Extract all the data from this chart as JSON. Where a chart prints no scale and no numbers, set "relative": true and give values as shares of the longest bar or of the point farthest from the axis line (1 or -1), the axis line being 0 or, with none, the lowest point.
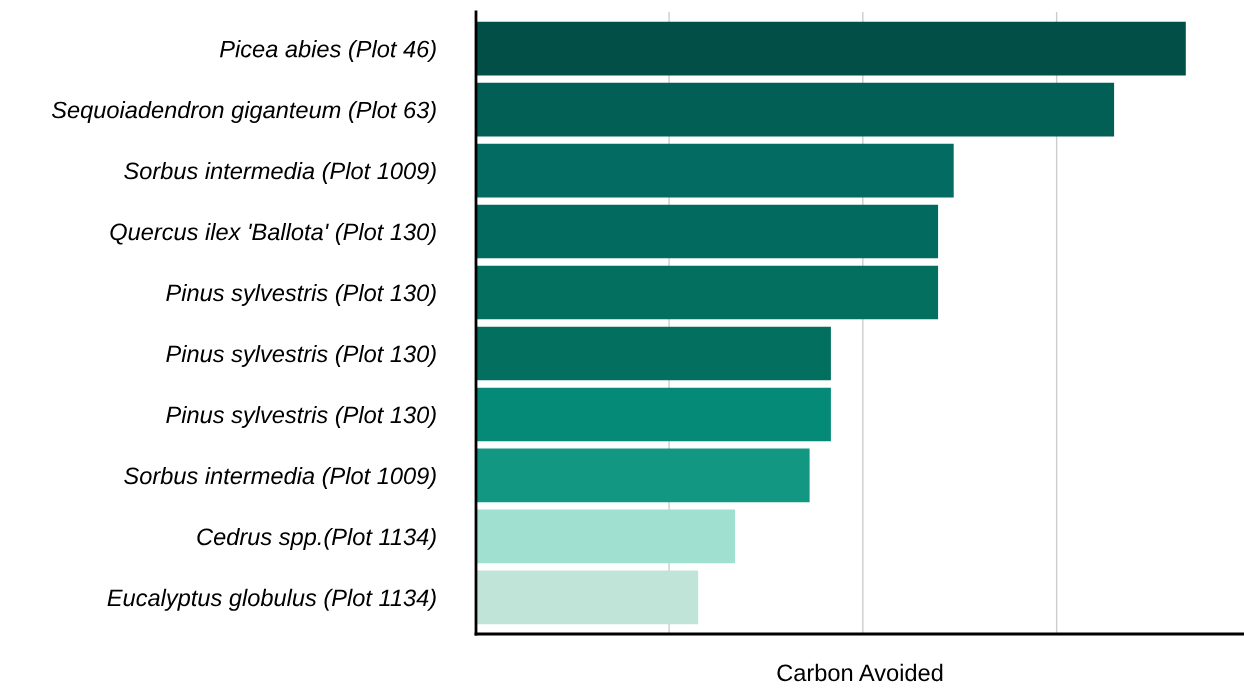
{
  "chart_data": {
    "type": "bar",
    "orientation": "horizontal",
    "relative": true,
    "xlabel": "Carbon Avoided",
    "categories": [
      "Picea abies (Plot 46)",
      "Sequoiadendron giganteum (Plot 63)",
      "Sorbus intermedia (Plot 1009)",
      "Quercus ilex 'Ballota' (Plot 130)",
      "Pinus sylvestris (Plot 130)",
      "Pinus sylvestris (Plot 130)",
      "Pinus sylvestris (Plot 130)",
      "Sorbus intermedia (Plot 1009)",
      "Cedrus spp.(Plot 1134)",
      "Eucalyptus globulus (Plot 1134)"
    ],
    "values": [
      1,
      0.899,
      0.673,
      0.651,
      0.651,
      0.5,
      0.5,
      0.47,
      0.365,
      0.313
    ],
    "colors": [
      "#024f47",
      "#025f56",
      "#036b62",
      "#036a60",
      "#03705f",
      "#026f5f",
      "#058a77",
      "#129783",
      "#a0e0d0",
      "#c0e4d7"
    ],
    "grid": "x"
  }
}
